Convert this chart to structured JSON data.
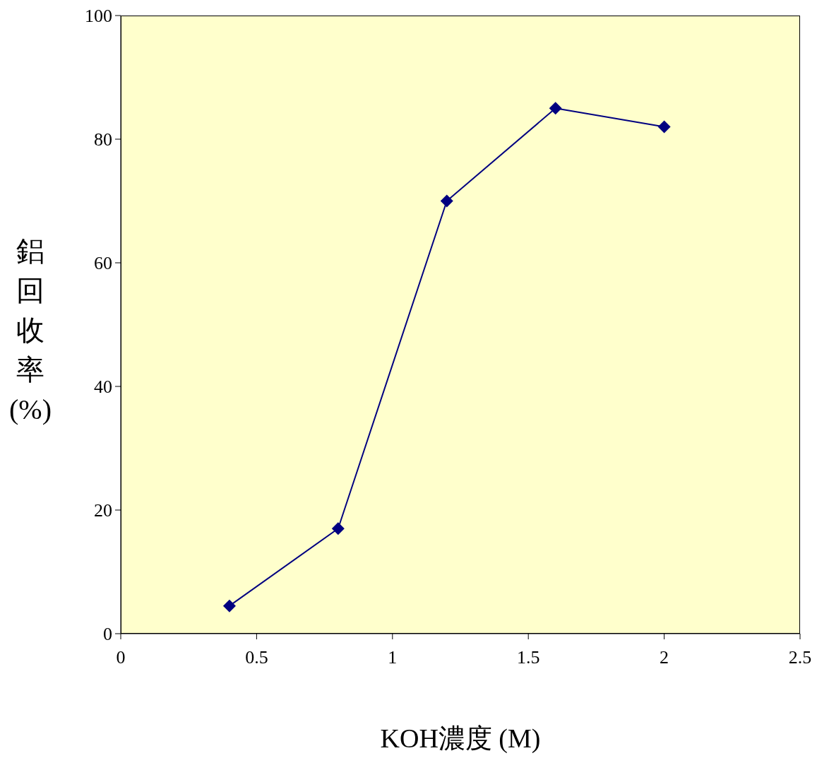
{
  "chart_data": {
    "type": "line",
    "xlabel": "KOH濃度 (M)",
    "ylabel": "鋁回收率(%)",
    "x": [
      0.4,
      0.8,
      1.2,
      1.6,
      2
    ],
    "series": [
      {
        "color": "#000080",
        "values": [
          4.5,
          17,
          70,
          85,
          82
        ]
      }
    ],
    "xlim": [
      0,
      2.5
    ],
    "xticks": [
      0,
      0.5,
      1,
      1.5,
      2,
      2.5
    ],
    "ylim": [
      0,
      100
    ],
    "yticks": [
      0,
      20,
      40,
      60,
      80,
      100
    ],
    "marker": "diamond",
    "line_style": "solid"
  }
}
